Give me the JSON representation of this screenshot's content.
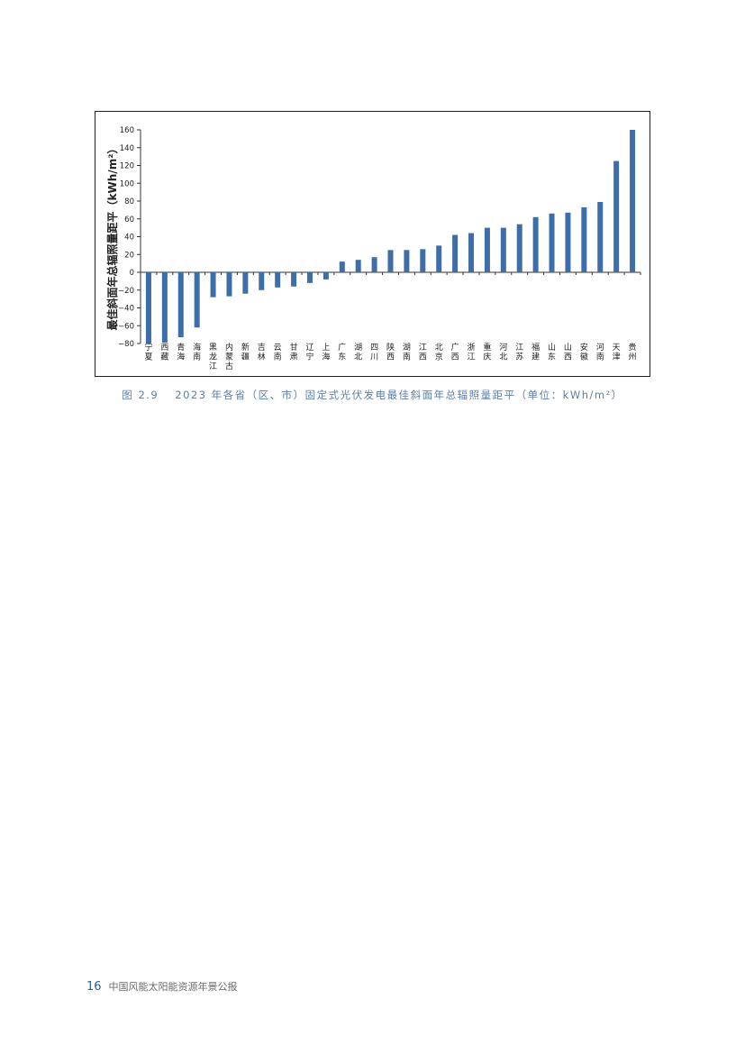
{
  "figure": {
    "number": "图 2.9",
    "caption": "2023 年各省（区、市）固定式光伏发电最佳斜面年总辐照量距平（单位：kWh/m²）"
  },
  "footer": {
    "page_number": "16",
    "publication": "中国风能太阳能资源年景公报"
  },
  "colors": {
    "bar": "#3d6ea8",
    "axis": "#333333"
  },
  "chart_data": {
    "type": "bar",
    "title": "",
    "xlabel": "",
    "ylabel": "最佳斜面年总辐照量距平（kWh/m²）",
    "ylim": [
      -80,
      160
    ],
    "yticks": [
      160,
      140,
      120,
      100,
      80,
      60,
      40,
      20,
      0,
      -20,
      -40,
      -60,
      -80
    ],
    "categories": [
      "宁夏",
      "西藏",
      "青海",
      "海南",
      "黑龙江",
      "内蒙古",
      "新疆",
      "吉林",
      "云南",
      "甘肃",
      "辽宁",
      "上海",
      "广东",
      "湖北",
      "四川",
      "陕西",
      "湖南",
      "江西",
      "北京",
      "广西",
      "浙江",
      "重庆",
      "河北",
      "江苏",
      "福建",
      "山东",
      "山西",
      "安徽",
      "河南",
      "天津",
      "贵州"
    ],
    "values": [
      -80,
      -79,
      -73,
      -62,
      -28,
      -27,
      -24,
      -20,
      -17,
      -16,
      -12,
      -8,
      12,
      14,
      17,
      25,
      25,
      26,
      30,
      42,
      44,
      50,
      50,
      54,
      62,
      66,
      67,
      73,
      79,
      125,
      160
    ]
  }
}
